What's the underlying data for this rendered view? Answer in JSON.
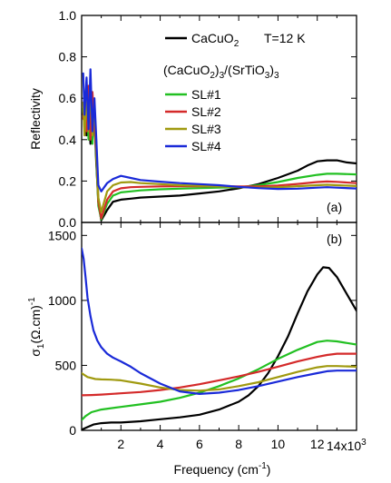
{
  "chart_data": [
    {
      "panel": "(a)",
      "type": "line",
      "ylabel": "Reflectivity",
      "xlim": [
        0,
        14000
      ],
      "ylim": [
        0,
        1.0
      ],
      "yticks": [
        "0.0",
        "0.2",
        "0.4",
        "0.6",
        "0.8",
        "1.0"
      ],
      "yticks_values": [
        0,
        0.2,
        0.4,
        0.6,
        0.8,
        1.0
      ],
      "annotation": "T=12 K",
      "legend_group_title_parts": [
        "(CaCuO",
        "2",
        ")",
        "3",
        "/(SrTiO",
        "3",
        ")",
        "3"
      ],
      "legend_placement": "top-right",
      "series": [
        {
          "name_parts": [
            "CaCuO",
            "2"
          ],
          "color": "#000000",
          "x": [
            80,
            150,
            250,
            350,
            450,
            550,
            650,
            750,
            850,
            1000,
            1300,
            1600,
            2000,
            2500,
            3000,
            4000,
            5000,
            6000,
            7000,
            8000,
            9000,
            10000,
            11000,
            11500,
            12000,
            12500,
            13000,
            13500,
            14000
          ],
          "y": [
            0.52,
            0.62,
            0.42,
            0.58,
            0.38,
            0.6,
            0.5,
            0.28,
            0.1,
            0.01,
            0.06,
            0.1,
            0.11,
            0.115,
            0.12,
            0.125,
            0.13,
            0.14,
            0.15,
            0.165,
            0.185,
            0.215,
            0.25,
            0.275,
            0.295,
            0.3,
            0.3,
            0.29,
            0.285
          ]
        },
        {
          "name": "SL#1",
          "color": "#22c022",
          "x": [
            80,
            150,
            250,
            350,
            450,
            550,
            650,
            750,
            850,
            1000,
            1300,
            1600,
            2000,
            2500,
            3000,
            4000,
            5000,
            6000,
            7000,
            8000,
            9000,
            10000,
            11000,
            12000,
            12500,
            13000,
            14000
          ],
          "y": [
            0.55,
            0.45,
            0.6,
            0.4,
            0.62,
            0.38,
            0.55,
            0.3,
            0.08,
            0.015,
            0.09,
            0.13,
            0.145,
            0.15,
            0.155,
            0.16,
            0.163,
            0.166,
            0.168,
            0.17,
            0.18,
            0.195,
            0.215,
            0.23,
            0.235,
            0.235,
            0.232
          ]
        },
        {
          "name": "SL#2",
          "color": "#d42a2a",
          "x": [
            80,
            150,
            250,
            350,
            450,
            550,
            650,
            750,
            850,
            1000,
            1300,
            1600,
            2000,
            2500,
            3000,
            4000,
            5000,
            6000,
            7000,
            8000,
            9000,
            10000,
            11000,
            12000,
            12500,
            13000,
            14000
          ],
          "y": [
            0.5,
            0.62,
            0.44,
            0.66,
            0.4,
            0.63,
            0.48,
            0.34,
            0.1,
            0.02,
            0.11,
            0.15,
            0.165,
            0.17,
            0.172,
            0.174,
            0.175,
            0.175,
            0.175,
            0.174,
            0.174,
            0.178,
            0.186,
            0.195,
            0.198,
            0.196,
            0.19
          ]
        },
        {
          "name": "SL#3",
          "color": "#a09a10",
          "x": [
            80,
            150,
            250,
            350,
            450,
            550,
            650,
            750,
            850,
            1000,
            1300,
            1600,
            2000,
            2500,
            3000,
            4000,
            5000,
            6000,
            7000,
            8000,
            9000,
            10000,
            11000,
            12000,
            12500,
            13000,
            14000
          ],
          "y": [
            0.58,
            0.42,
            0.62,
            0.44,
            0.68,
            0.42,
            0.56,
            0.38,
            0.12,
            0.05,
            0.15,
            0.18,
            0.193,
            0.195,
            0.19,
            0.185,
            0.18,
            0.177,
            0.174,
            0.17,
            0.168,
            0.17,
            0.175,
            0.18,
            0.182,
            0.18,
            0.176
          ]
        },
        {
          "name": "SL#4",
          "color": "#1a2ad8",
          "x": [
            80,
            150,
            250,
            350,
            450,
            550,
            650,
            750,
            850,
            1000,
            1300,
            1600,
            2000,
            2500,
            3000,
            4000,
            5000,
            6000,
            7000,
            8000,
            9000,
            10000,
            11000,
            12000,
            12500,
            13000,
            14000
          ],
          "y": [
            0.72,
            0.52,
            0.7,
            0.45,
            0.74,
            0.44,
            0.6,
            0.4,
            0.18,
            0.15,
            0.19,
            0.21,
            0.225,
            0.215,
            0.205,
            0.197,
            0.19,
            0.185,
            0.18,
            0.172,
            0.166,
            0.162,
            0.163,
            0.168,
            0.17,
            0.168,
            0.164
          ]
        }
      ]
    },
    {
      "panel": "(b)",
      "type": "line",
      "ylabel_parts": [
        "σ",
        "1",
        "(Ω.cm)",
        "-1"
      ],
      "xlabel_parts": [
        "Frequency (cm",
        "-1",
        ")"
      ],
      "xlim": [
        0,
        14000
      ],
      "ylim": [
        0,
        1600
      ],
      "xticks_values": [
        2000,
        4000,
        6000,
        8000,
        10000,
        12000
      ],
      "xticks": [
        "2",
        "4",
        "6",
        "8",
        "10",
        "12"
      ],
      "xscale_label_parts": [
        "14x10",
        "3"
      ],
      "yticks_values": [
        0,
        500,
        1000,
        1500
      ],
      "yticks": [
        "0",
        "500",
        "1000",
        "1500"
      ],
      "series": [
        {
          "name_parts": [
            "CaCuO",
            "2"
          ],
          "color": "#000000",
          "x": [
            0,
            300,
            600,
            1000,
            1500,
            2000,
            3000,
            4000,
            5000,
            6000,
            7000,
            8000,
            8500,
            9000,
            9500,
            10000,
            10500,
            11000,
            11500,
            12000,
            12300,
            12600,
            13000,
            13500,
            14000
          ],
          "y": [
            5,
            25,
            45,
            55,
            60,
            60,
            70,
            85,
            100,
            120,
            160,
            220,
            270,
            340,
            440,
            570,
            720,
            900,
            1070,
            1200,
            1255,
            1250,
            1180,
            1050,
            920
          ]
        },
        {
          "name": "SL#1",
          "color": "#22c022",
          "x": [
            0,
            200,
            500,
            1000,
            2000,
            3000,
            4000,
            5000,
            6000,
            7000,
            8000,
            9000,
            10000,
            11000,
            12000,
            12500,
            13000,
            14000
          ],
          "y": [
            80,
            110,
            140,
            160,
            180,
            200,
            220,
            250,
            290,
            340,
            400,
            470,
            550,
            620,
            680,
            690,
            685,
            660
          ]
        },
        {
          "name": "SL#2",
          "color": "#d42a2a",
          "x": [
            0,
            500,
            1000,
            2000,
            3000,
            4000,
            5000,
            6000,
            7000,
            8000,
            9000,
            10000,
            11000,
            12000,
            12500,
            13000,
            14000
          ],
          "y": [
            270,
            272,
            275,
            285,
            295,
            310,
            330,
            355,
            385,
            415,
            450,
            490,
            530,
            565,
            580,
            590,
            590
          ]
        },
        {
          "name": "SL#3",
          "color": "#a09a10",
          "x": [
            0,
            300,
            700,
            1000,
            1500,
            2000,
            3000,
            4000,
            5000,
            6000,
            7000,
            8000,
            9000,
            10000,
            11000,
            12000,
            12500,
            13000,
            14000
          ],
          "y": [
            440,
            410,
            395,
            392,
            390,
            385,
            360,
            330,
            310,
            305,
            315,
            340,
            370,
            410,
            450,
            485,
            495,
            495,
            490
          ]
        },
        {
          "name": "SL#4",
          "color": "#1a2ad8",
          "x": [
            0,
            100,
            200,
            300,
            450,
            600,
            800,
            1000,
            1300,
            1600,
            2000,
            2500,
            3000,
            4000,
            5000,
            6000,
            7000,
            8000,
            9000,
            10000,
            11000,
            12000,
            12500,
            13000,
            14000
          ],
          "y": [
            1400,
            1320,
            1180,
            1020,
            880,
            770,
            690,
            640,
            590,
            560,
            530,
            490,
            440,
            360,
            300,
            280,
            290,
            310,
            340,
            375,
            410,
            440,
            455,
            460,
            460
          ]
        }
      ]
    }
  ]
}
